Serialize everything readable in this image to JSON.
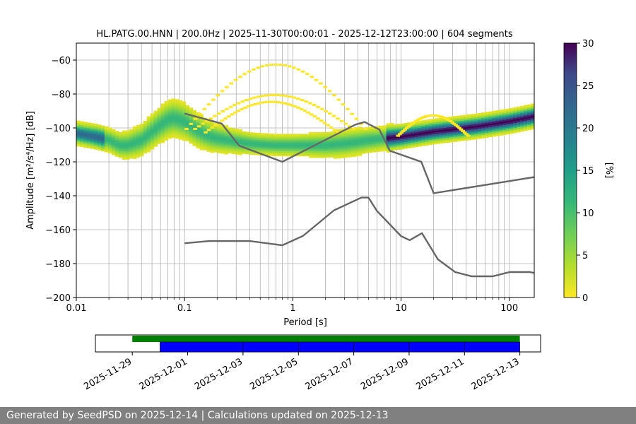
{
  "chart_data": [
    {
      "type": "heatmap",
      "title": "HL.PATG.00.HNN | 200.0Hz | 2025-11-30T00:00:01 - 2025-12-12T23:00:00 | 604 segments",
      "xlabel": "Period [s]",
      "ylabel": "Amplitude [m²/s⁴/Hz] [dB]",
      "xscale": "log",
      "xlim": [
        0.01,
        170
      ],
      "ylim": [
        -200,
        -50
      ],
      "xticks": [
        0.01,
        0.1,
        1,
        10,
        100
      ],
      "xtick_labels": [
        "0.01",
        "0.1",
        "1",
        "10",
        "100"
      ],
      "yticks": [
        -200,
        -180,
        -160,
        -140,
        -120,
        -100,
        -80,
        -60
      ],
      "ytick_labels": [
        "−200",
        "−180",
        "−160",
        "−140",
        "−120",
        "−100",
        "−80",
        "−60"
      ],
      "grid": true,
      "colorbar": {
        "label": "[%]",
        "colormap": "viridis_r",
        "range": [
          0,
          30
        ],
        "ticks": [
          "0",
          "5",
          "10",
          "15",
          "20",
          "25",
          "30"
        ]
      },
      "mode_curve": {
        "period": [
          0.01,
          0.015,
          0.02,
          0.025,
          0.03,
          0.04,
          0.05,
          0.06,
          0.07,
          0.08,
          0.1,
          0.13,
          0.16,
          0.2,
          0.25,
          0.3,
          0.4,
          0.5,
          0.7,
          1,
          1.5,
          2,
          3,
          4,
          5,
          7,
          10,
          20,
          50,
          100,
          170
        ],
        "db": [
          -103,
          -105,
          -107,
          -110,
          -110,
          -107,
          -102,
          -98,
          -95,
          -94,
          -96,
          -101,
          -104,
          -106,
          -107,
          -108,
          -109,
          -109.5,
          -110,
          -110,
          -110,
          -110,
          -109,
          -108,
          -107,
          -106,
          -105,
          -102,
          -99,
          -96,
          -93
        ]
      },
      "nlnm": {
        "period": [
          0.1,
          0.17,
          0.4,
          0.8,
          1.24,
          2.4,
          4.3,
          5.0,
          6.0,
          10.0,
          12.0,
          15.6,
          21.9,
          31.6,
          45.0,
          70.0,
          101.0,
          154.0,
          170.0
        ],
        "db": [
          -168,
          -166.7,
          -166.7,
          -169.2,
          -163.7,
          -148.6,
          -141.1,
          -141.1,
          -149.0,
          -163.8,
          -166.2,
          -162.1,
          -177.5,
          -185.0,
          -187.5,
          -187.5,
          -185.0,
          -185.0,
          -185.5
        ]
      },
      "nhnm": {
        "period": [
          0.1,
          0.22,
          0.32,
          0.8,
          3.8,
          4.6,
          6.3,
          7.9,
          15.4,
          20.0,
          170.0
        ],
        "db": [
          -91.5,
          -97.4,
          -110.5,
          -120.0,
          -98.0,
          -96.5,
          -101.0,
          -113.5,
          -120.0,
          -138.5,
          -129.0
        ]
      }
    },
    {
      "type": "timeline",
      "xtick_labels": [
        "2025-11-29",
        "2025-12-01",
        "2025-12-03",
        "2025-12-05",
        "2025-12-07",
        "2025-12-09",
        "2025-12-11",
        "2025-12-13"
      ],
      "xlim": [
        "2025-11-27T16:00",
        "2025-12-13T18:00"
      ],
      "series": [
        {
          "color": "#008000",
          "segments": [
            [
              "2025-11-29T00:00",
              "2025-12-13T00:00"
            ]
          ]
        },
        {
          "color": "#0000ff",
          "segments": [
            [
              "2025-11-30T00:00",
              "2025-12-03T00:00"
            ],
            [
              "2025-12-03T00:00",
              "2025-12-05T00:00"
            ],
            [
              "2025-12-05T00:00",
              "2025-12-07T00:00"
            ],
            [
              "2025-12-07T00:00",
              "2025-12-09T00:00"
            ],
            [
              "2025-12-09T00:00",
              "2025-12-11T00:00"
            ],
            [
              "2025-12-11T00:00",
              "2025-12-13T00:00"
            ]
          ]
        }
      ]
    }
  ],
  "footer": {
    "text": "Generated by SeedPSD on 2025-12-14 | Calculations updated on 2025-12-13"
  }
}
